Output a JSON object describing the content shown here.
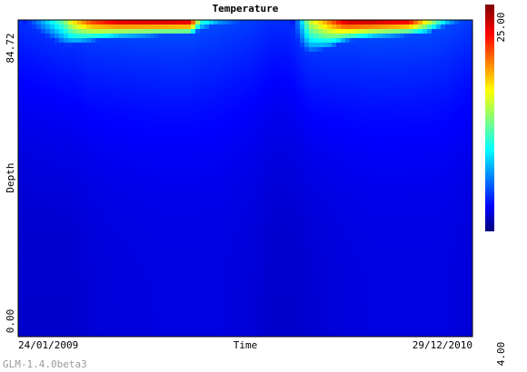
{
  "chart_data": {
    "type": "heatmap",
    "title": "Temperature",
    "xlabel": "Time",
    "ylabel": "Depth",
    "x_tick_labels": [
      "24/01/2009",
      "29/12/2010"
    ],
    "y_tick_labels": [
      "84.72",
      "0.00"
    ],
    "ylim": [
      0.0,
      84.72
    ],
    "colorbar": {
      "min": 4.0,
      "max": 25.0,
      "min_label": "4.00",
      "max_label": "25.00",
      "colormap": "jet"
    },
    "profiles": [
      {
        "t": 0.0,
        "bottom": 5.6,
        "warm": 84.5,
        "top": 5.6
      },
      {
        "t": 0.1,
        "bottom": 5.6,
        "warm": 78.0,
        "top": 14.5
      },
      {
        "t": 0.12,
        "bottom": 5.6,
        "warm": 78.0,
        "top": 18.0
      },
      {
        "t": 0.16,
        "bottom": 5.8,
        "warm": 79.0,
        "top": 22.0
      },
      {
        "t": 0.22,
        "bottom": 5.9,
        "warm": 80.0,
        "top": 24.5
      },
      {
        "t": 0.32,
        "bottom": 6.0,
        "warm": 80.5,
        "top": 25.0
      },
      {
        "t": 0.38,
        "bottom": 6.0,
        "warm": 80.5,
        "top": 24.5
      },
      {
        "t": 0.4,
        "bottom": 6.0,
        "warm": 82.0,
        "top": 14.0
      },
      {
        "t": 0.44,
        "bottom": 6.0,
        "warm": 83.5,
        "top": 11.0
      },
      {
        "t": 0.48,
        "bottom": 5.9,
        "warm": 84.0,
        "top": 9.0
      },
      {
        "t": 0.52,
        "bottom": 5.8,
        "warm": 84.5,
        "top": 6.5
      },
      {
        "t": 0.56,
        "bottom": 5.6,
        "warm": 84.7,
        "top": 5.6
      },
      {
        "t": 0.6,
        "bottom": 5.6,
        "warm": 84.0,
        "top": 6.0
      },
      {
        "t": 0.62,
        "bottom": 5.6,
        "warm": 78.0,
        "top": 10.0
      },
      {
        "t": 0.64,
        "bottom": 5.7,
        "warm": 76.0,
        "top": 16.0
      },
      {
        "t": 0.68,
        "bottom": 5.8,
        "warm": 77.0,
        "top": 20.0
      },
      {
        "t": 0.72,
        "bottom": 5.9,
        "warm": 79.0,
        "top": 24.5
      },
      {
        "t": 0.78,
        "bottom": 6.0,
        "warm": 80.0,
        "top": 25.0
      },
      {
        "t": 0.86,
        "bottom": 6.0,
        "warm": 80.5,
        "top": 24.0
      },
      {
        "t": 0.9,
        "bottom": 6.0,
        "warm": 81.0,
        "top": 18.0
      },
      {
        "t": 0.94,
        "bottom": 6.0,
        "warm": 83.0,
        "top": 12.0
      },
      {
        "t": 0.97,
        "bottom": 5.9,
        "warm": 84.0,
        "top": 9.0
      },
      {
        "t": 1.0,
        "bottom": 5.8,
        "warm": 84.5,
        "top": 7.0
      }
    ]
  },
  "footer": {
    "version": "GLM-1.4.0beta3"
  }
}
